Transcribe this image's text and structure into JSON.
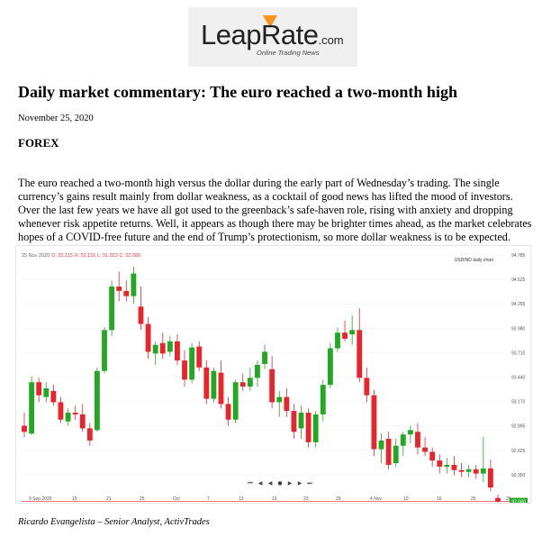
{
  "logo": {
    "main": "LeapRate",
    "suffix": ".com",
    "tagline": "Online Trading News"
  },
  "article": {
    "title": "Daily market commentary: The euro reached a two-month high",
    "date": "November 25, 2020",
    "section": "FOREX",
    "body": "The euro reached a two-month high versus the dollar during the early part of Wednesday’s trading. The single currency’s gains result mainly from dollar weakness, as a cocktail of good news has lifted the mood of investors. Over the last few years we have all got used to the greenback’s safe-haven role, rising with anxiety and dropping whenever risk appetite returns. Well, it appears as though there may be brighter times ahead, as the market celebrates hopes of a COVID-free future and the end of Trump’s protectionism, so more dollar weakness is to be expected.",
    "author": "Ricardo Evangelista – Senior Analyst, ActivTrades"
  },
  "chart_header": {
    "date": "25 Nov 2020",
    "ohlc": "O: 92.115 H: 92.156 L: 91.923 C: 92.080",
    "symbol": "USDIND daily chart"
  },
  "chart_controls": [
    "⏮",
    "◀",
    "◀",
    "●",
    "▶",
    "▶",
    "⏭"
  ],
  "chart_data": {
    "type": "candlestick",
    "y_tick_labels": [
      "94.785",
      "94.525",
      "94.255",
      "93.980",
      "93.710",
      "93.440",
      "93.170",
      "92.895",
      "92.625",
      "92.350"
    ],
    "x_tick_labels": [
      "9 Sep 2020",
      "15",
      "21",
      "25",
      "Oct",
      "7",
      "13",
      "19",
      "23",
      "29",
      "4 Nov",
      "10",
      "16",
      "20",
      "26"
    ],
    "ylim": [
      92.22,
      94.83
    ],
    "current_price": "92.080",
    "colors": {
      "up": "#22a822",
      "down": "#e8242c"
    },
    "candles": [
      {
        "o": 92.95,
        "h": 93.1,
        "l": 92.82,
        "c": 92.88
      },
      {
        "o": 92.86,
        "h": 93.52,
        "l": 92.84,
        "c": 93.45
      },
      {
        "o": 93.45,
        "h": 93.5,
        "l": 93.22,
        "c": 93.3
      },
      {
        "o": 93.28,
        "h": 93.45,
        "l": 93.22,
        "c": 93.38
      },
      {
        "o": 93.35,
        "h": 93.42,
        "l": 93.18,
        "c": 93.22
      },
      {
        "o": 93.22,
        "h": 93.28,
        "l": 92.98,
        "c": 93.02
      },
      {
        "o": 93.0,
        "h": 93.15,
        "l": 92.95,
        "c": 93.1
      },
      {
        "o": 93.1,
        "h": 93.18,
        "l": 93.02,
        "c": 93.08
      },
      {
        "o": 93.08,
        "h": 93.2,
        "l": 92.88,
        "c": 92.92
      },
      {
        "o": 92.92,
        "h": 92.98,
        "l": 92.72,
        "c": 92.78
      },
      {
        "o": 92.9,
        "h": 93.62,
        "l": 92.88,
        "c": 93.58
      },
      {
        "o": 93.58,
        "h": 94.08,
        "l": 93.55,
        "c": 94.05
      },
      {
        "o": 94.05,
        "h": 94.62,
        "l": 93.98,
        "c": 94.55
      },
      {
        "o": 94.55,
        "h": 94.72,
        "l": 94.38,
        "c": 94.5
      },
      {
        "o": 94.5,
        "h": 94.62,
        "l": 94.38,
        "c": 94.44
      },
      {
        "o": 94.44,
        "h": 94.78,
        "l": 94.35,
        "c": 94.7
      },
      {
        "o": 94.32,
        "h": 94.55,
        "l": 94.05,
        "c": 94.12
      },
      {
        "o": 94.12,
        "h": 94.2,
        "l": 93.72,
        "c": 93.8
      },
      {
        "o": 93.78,
        "h": 93.92,
        "l": 93.65,
        "c": 93.88
      },
      {
        "o": 93.9,
        "h": 94.02,
        "l": 93.72,
        "c": 93.78
      },
      {
        "o": 93.8,
        "h": 93.98,
        "l": 93.75,
        "c": 93.92
      },
      {
        "o": 93.92,
        "h": 94.0,
        "l": 93.65,
        "c": 93.7
      },
      {
        "o": 93.7,
        "h": 93.82,
        "l": 93.4,
        "c": 93.48
      },
      {
        "o": 93.48,
        "h": 93.9,
        "l": 93.44,
        "c": 93.85
      },
      {
        "o": 93.86,
        "h": 93.92,
        "l": 93.58,
        "c": 93.62
      },
      {
        "o": 93.62,
        "h": 93.7,
        "l": 93.2,
        "c": 93.26
      },
      {
        "o": 93.26,
        "h": 93.62,
        "l": 93.22,
        "c": 93.58
      },
      {
        "o": 93.56,
        "h": 93.7,
        "l": 93.15,
        "c": 93.2
      },
      {
        "o": 93.2,
        "h": 93.28,
        "l": 92.95,
        "c": 93.02
      },
      {
        "o": 93.02,
        "h": 93.48,
        "l": 92.98,
        "c": 93.45
      },
      {
        "o": 93.45,
        "h": 93.55,
        "l": 93.35,
        "c": 93.4
      },
      {
        "o": 93.4,
        "h": 93.62,
        "l": 93.35,
        "c": 93.5
      },
      {
        "o": 93.5,
        "h": 93.7,
        "l": 93.4,
        "c": 93.65
      },
      {
        "o": 93.66,
        "h": 93.88,
        "l": 93.6,
        "c": 93.8
      },
      {
        "o": 93.6,
        "h": 93.75,
        "l": 93.15,
        "c": 93.22
      },
      {
        "o": 93.22,
        "h": 93.35,
        "l": 93.05,
        "c": 93.28
      },
      {
        "o": 93.28,
        "h": 93.38,
        "l": 93.05,
        "c": 93.12
      },
      {
        "o": 93.12,
        "h": 93.2,
        "l": 92.8,
        "c": 92.88
      },
      {
        "o": 92.92,
        "h": 93.18,
        "l": 92.8,
        "c": 93.1
      },
      {
        "o": 93.1,
        "h": 93.15,
        "l": 92.7,
        "c": 92.76
      },
      {
        "o": 92.76,
        "h": 93.12,
        "l": 92.7,
        "c": 93.08
      },
      {
        "o": 93.08,
        "h": 93.48,
        "l": 93.0,
        "c": 93.42
      },
      {
        "o": 93.42,
        "h": 93.9,
        "l": 93.38,
        "c": 93.84
      },
      {
        "o": 93.84,
        "h": 94.08,
        "l": 93.8,
        "c": 94.02
      },
      {
        "o": 94.02,
        "h": 94.16,
        "l": 93.92,
        "c": 93.95
      },
      {
        "o": 94.0,
        "h": 94.22,
        "l": 93.88,
        "c": 94.05
      },
      {
        "o": 94.05,
        "h": 94.3,
        "l": 93.45,
        "c": 93.5
      },
      {
        "o": 93.5,
        "h": 93.62,
        "l": 93.22,
        "c": 93.3
      },
      {
        "o": 93.3,
        "h": 93.36,
        "l": 92.6,
        "c": 92.68
      },
      {
        "o": 92.68,
        "h": 92.86,
        "l": 92.52,
        "c": 92.78
      },
      {
        "o": 92.8,
        "h": 92.88,
        "l": 92.45,
        "c": 92.5
      },
      {
        "o": 92.52,
        "h": 92.8,
        "l": 92.48,
        "c": 92.72
      },
      {
        "o": 92.72,
        "h": 92.88,
        "l": 92.6,
        "c": 92.85
      },
      {
        "o": 92.85,
        "h": 92.95,
        "l": 92.75,
        "c": 92.9
      },
      {
        "o": 92.88,
        "h": 92.98,
        "l": 92.62,
        "c": 92.7
      },
      {
        "o": 92.7,
        "h": 92.82,
        "l": 92.6,
        "c": 92.65
      },
      {
        "o": 92.65,
        "h": 92.7,
        "l": 92.48,
        "c": 92.55
      },
      {
        "o": 92.55,
        "h": 92.62,
        "l": 92.4,
        "c": 92.48
      },
      {
        "o": 92.48,
        "h": 92.58,
        "l": 92.4,
        "c": 92.5
      },
      {
        "o": 92.5,
        "h": 92.6,
        "l": 92.38,
        "c": 92.44
      },
      {
        "o": 92.44,
        "h": 92.52,
        "l": 92.36,
        "c": 92.42
      },
      {
        "o": 92.42,
        "h": 92.5,
        "l": 92.36,
        "c": 92.45
      },
      {
        "o": 92.45,
        "h": 92.5,
        "l": 92.34,
        "c": 92.4
      },
      {
        "o": 92.4,
        "h": 92.82,
        "l": 92.3,
        "c": 92.46
      },
      {
        "o": 92.46,
        "h": 92.56,
        "l": 92.2,
        "c": 92.24
      },
      {
        "o": 92.12,
        "h": 92.16,
        "l": 91.92,
        "c": 92.08
      }
    ]
  }
}
